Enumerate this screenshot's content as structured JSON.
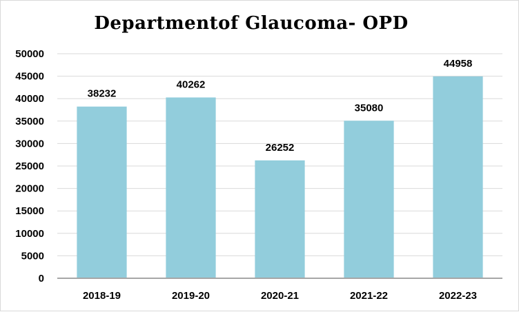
{
  "chart_data": {
    "type": "bar",
    "title": "Departmentof Glaucoma- OPD",
    "categories": [
      "2018-19",
      "2019-20",
      "2020-21",
      "2021-22",
      "2022-23"
    ],
    "values": [
      38232,
      40262,
      26252,
      35080,
      44958
    ],
    "data_labels": [
      "38232",
      "40262",
      "26252",
      "35080",
      "44958"
    ],
    "y_ticks": [
      "0",
      "5000",
      "10000",
      "15000",
      "20000",
      "25000",
      "30000",
      "35000",
      "40000",
      "45000",
      "50000"
    ],
    "ylim": [
      0,
      50000
    ],
    "xlabel": "",
    "ylabel": "",
    "grid": true,
    "legend": "none",
    "colors": {
      "bar": "#92cddc",
      "grid": "#d9d9d9",
      "axis": "#a6a6a6"
    }
  }
}
